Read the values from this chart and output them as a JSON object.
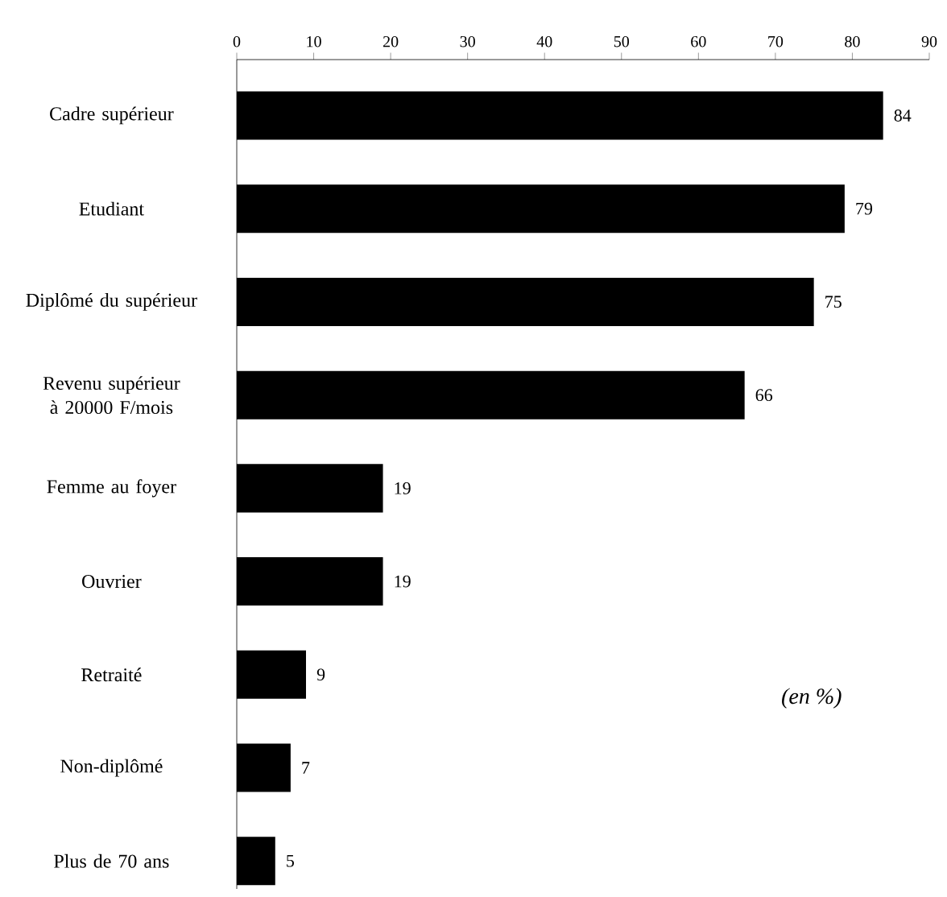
{
  "chart_data": {
    "type": "bar",
    "orientation": "horizontal",
    "categories": [
      "Cadre supérieur",
      "Etudiant",
      "Diplômé du supérieur",
      "Revenu supérieur à 20000 F/mois",
      "Femme au foyer",
      "Ouvrier",
      "Retraité",
      "Non-diplômé",
      "Plus de 70 ans"
    ],
    "values": [
      84,
      79,
      75,
      66,
      19,
      19,
      9,
      7,
      5
    ],
    "color": "#000000",
    "xlim": [
      0,
      90
    ],
    "xticks": [
      0,
      10,
      20,
      30,
      40,
      50,
      60,
      70,
      80,
      90
    ],
    "data_labels": true,
    "annotations": [
      "(en %)"
    ]
  }
}
